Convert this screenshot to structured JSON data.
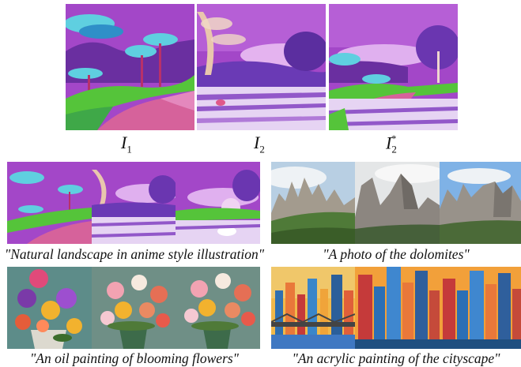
{
  "top_row": {
    "labels": [
      {
        "base": "I",
        "sub": "1",
        "sup": ""
      },
      {
        "base": "I",
        "sub": "2",
        "sup": ""
      },
      {
        "base": "I",
        "sub": "2",
        "sup": "*"
      }
    ]
  },
  "captions": {
    "anime": "\"Natural landscape in anime style illustration\"",
    "dolomites": "\"A photo of the dolomites\"",
    "flowers": "\"An oil painting of blooming flowers\"",
    "cityscape": "\"An acrylic painting of the cityscape\""
  },
  "colors": {
    "purple_sky": "#9b3fc4",
    "pink_path": "#d6629b",
    "green_grass": "#5fc23a",
    "cyan_tree": "#58d4d9",
    "rock_grey": "#8f8f8b",
    "sky_blue": "#7fb2e6",
    "city_orange": "#f1a23a",
    "flower_bg": "#6f8f86"
  }
}
